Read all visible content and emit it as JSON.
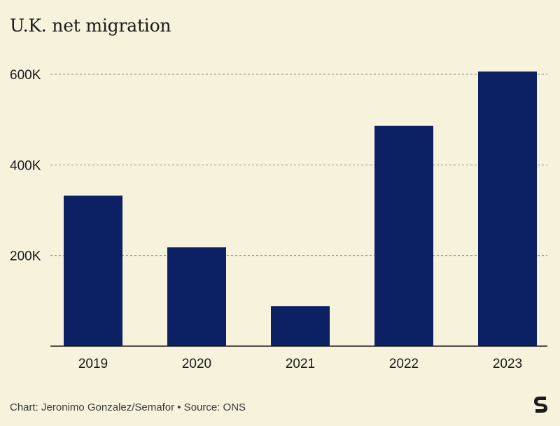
{
  "title": "U.K. net migration",
  "footer": "Chart: Jeronimo Gonzalez/Semafor • Source: ONS",
  "logo_name": "semafor-logo-icon",
  "colors": {
    "background": "#f6f2dc",
    "bar": "#0b2163",
    "grid": "#8c8c86",
    "axis": "#1a1a1a",
    "text": "#1a1a1a"
  },
  "chart_data": {
    "type": "bar",
    "title": "U.K. net migration",
    "categories": [
      "2019",
      "2020",
      "2021",
      "2022",
      "2023"
    ],
    "values": [
      332000,
      218000,
      88000,
      486000,
      606000
    ],
    "y_ticks": [
      200000,
      400000,
      600000
    ],
    "y_tick_labels": [
      "200K",
      "400K",
      "600K"
    ],
    "ylim": [
      0,
      600000
    ],
    "xlabel": "",
    "ylabel": "",
    "grid": "dashed horizontal",
    "legend": "none"
  }
}
